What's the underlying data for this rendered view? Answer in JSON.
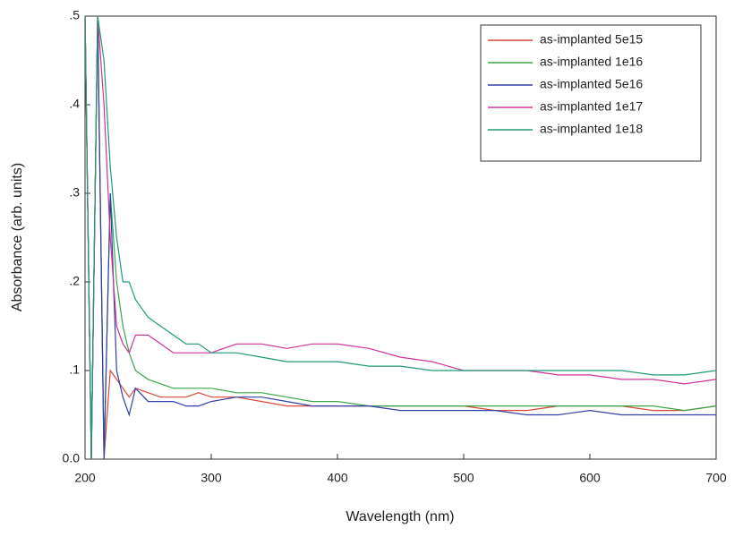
{
  "chart_data": {
    "type": "line",
    "xlabel": "Wavelength (nm)",
    "ylabel": "Absorbance (arb. units)",
    "x": [
      200,
      205,
      210,
      215,
      220,
      225,
      230,
      235,
      240,
      250,
      260,
      270,
      280,
      290,
      300,
      320,
      340,
      360,
      380,
      400,
      425,
      450,
      475,
      500,
      525,
      550,
      575,
      600,
      625,
      650,
      675,
      700
    ],
    "series": [
      {
        "name": "as-implanted 5e15",
        "color": "#d9493a",
        "values": [
          0.5,
          0,
          0.5,
          0,
          0.1,
          0.09,
          0.08,
          0.07,
          0.08,
          0.075,
          0.07,
          0.07,
          0.07,
          0.075,
          0.07,
          0.07,
          0.065,
          0.06,
          0.06,
          0.06,
          0.06,
          0.06,
          0.06,
          0.06,
          0.055,
          0.055,
          0.06,
          0.06,
          0.06,
          0.055,
          0.055,
          0.06
        ]
      },
      {
        "name": "as-implanted 1e16",
        "color": "#3aa64a",
        "values": [
          0.5,
          0,
          0.5,
          0,
          0.3,
          0.2,
          0.15,
          0.12,
          0.1,
          0.09,
          0.085,
          0.08,
          0.08,
          0.08,
          0.08,
          0.075,
          0.075,
          0.07,
          0.065,
          0.065,
          0.06,
          0.06,
          0.06,
          0.06,
          0.06,
          0.06,
          0.06,
          0.06,
          0.06,
          0.06,
          0.055,
          0.06
        ]
      },
      {
        "name": "as-implanted 5e16",
        "color": "#3340a8",
        "values": [
          0.5,
          0,
          0.5,
          0,
          0.3,
          0.1,
          0.07,
          0.05,
          0.08,
          0.065,
          0.065,
          0.065,
          0.06,
          0.06,
          0.065,
          0.07,
          0.07,
          0.065,
          0.06,
          0.06,
          0.06,
          0.055,
          0.055,
          0.055,
          0.055,
          0.05,
          0.05,
          0.055,
          0.05,
          0.05,
          0.05,
          0.05
        ]
      },
      {
        "name": "as-implanted 1e17",
        "color": "#cc3399",
        "values": [
          0.5,
          0,
          0.5,
          0.4,
          0.25,
          0.15,
          0.13,
          0.12,
          0.14,
          0.14,
          0.13,
          0.12,
          0.12,
          0.12,
          0.12,
          0.13,
          0.13,
          0.125,
          0.13,
          0.13,
          0.125,
          0.115,
          0.11,
          0.1,
          0.1,
          0.1,
          0.095,
          0.095,
          0.09,
          0.09,
          0.085,
          0.09
        ]
      },
      {
        "name": "as-implanted 1e18",
        "color": "#229977",
        "values": [
          0.5,
          0,
          0.5,
          0.45,
          0.33,
          0.25,
          0.2,
          0.2,
          0.18,
          0.16,
          0.15,
          0.14,
          0.13,
          0.13,
          0.12,
          0.12,
          0.115,
          0.11,
          0.11,
          0.11,
          0.105,
          0.105,
          0.1,
          0.1,
          0.1,
          0.1,
          0.1,
          0.1,
          0.1,
          0.095,
          0.095,
          0.1
        ]
      }
    ],
    "xlim": [
      200,
      700
    ],
    "xticks": [
      200,
      300,
      400,
      500,
      600,
      700
    ],
    "ylim": [
      0,
      0.5
    ],
    "yticks": [
      {
        "value": 0,
        "label": "0.0"
      },
      {
        "value": 0.1,
        "label": ".1"
      },
      {
        "value": 0.2,
        "label": ".2"
      },
      {
        "value": 0.3,
        "label": ".3"
      },
      {
        "value": 0.4,
        "label": ".4"
      },
      {
        "value": 0.5,
        "label": ".5"
      }
    ],
    "grid": false,
    "legend": "upper-right"
  }
}
